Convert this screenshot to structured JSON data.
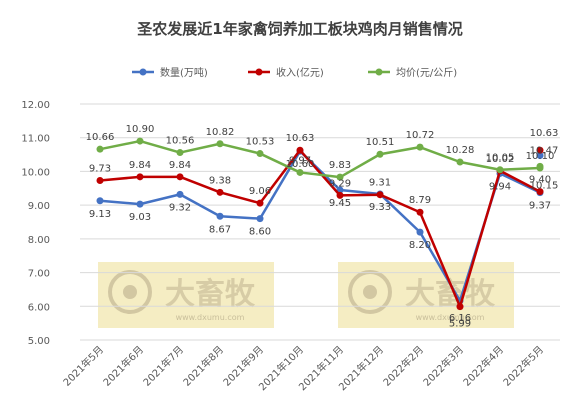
{
  "chart_data": {
    "type": "line",
    "title": "圣农发展近1年家禽饲养加工板块鸡肉月销售情况",
    "xlabel": "",
    "ylabel": "",
    "ylim": [
      5.0,
      12.0
    ],
    "yticks": [
      "5.00",
      "6.00",
      "7.00",
      "8.00",
      "9.00",
      "10.00",
      "11.00",
      "12.00"
    ],
    "grid": true,
    "legend_position": "top",
    "categories": [
      "2021年5月",
      "2021年6月",
      "2021年7月",
      "2021年8月",
      "2021年9月",
      "2021年10月",
      "2021年11月",
      "2021年12月",
      "2022年2月",
      "2022年3月",
      "2022年4月",
      "2022年5月"
    ],
    "series": [
      {
        "name": "数量(万吨)",
        "color": "#4472c4",
        "values": [
          9.13,
          9.03,
          9.32,
          8.67,
          8.6,
          10.6,
          9.45,
          9.33,
          8.2,
          6.16,
          9.94,
          9.37
        ],
        "labels": [
          "9.13",
          "9.03",
          "9.32",
          "8.67",
          "8.60",
          "10.60",
          "9.45",
          "9.33",
          "8.20",
          "6.16",
          "9.94",
          "9.37"
        ]
      },
      {
        "name": "收入(亿元)",
        "color": "#c00000",
        "values": [
          9.73,
          9.84,
          9.84,
          9.38,
          9.06,
          10.63,
          9.29,
          9.31,
          8.79,
          5.99,
          10.02,
          9.4
        ],
        "labels": [
          "9.73",
          "9.84",
          "9.84",
          "9.38",
          "9.06",
          "10.63",
          "9.29",
          "9.31",
          "8.79",
          "5.99",
          "10.02",
          "9.40"
        ]
      },
      {
        "name": "均价(元/公斤)",
        "color": "#70ad47",
        "values": [
          10.66,
          10.9,
          10.56,
          10.82,
          10.53,
          9.97,
          9.83,
          10.51,
          10.72,
          10.28,
          10.05,
          10.1
        ],
        "labels": [
          "10.66",
          "10.90",
          "10.56",
          "10.82",
          "10.53",
          "9.97",
          "9.83",
          "10.51",
          "10.72",
          "10.28",
          "10.05",
          "10.10"
        ]
      }
    ],
    "extra_points": {
      "x_category": "2022年5月",
      "values": [
        {
          "series": "数量(万吨)",
          "value": 10.47,
          "label": "10.47"
        },
        {
          "series": "收入(亿元)",
          "value": 10.63,
          "label": "10.63"
        },
        {
          "series": "均价(元/公斤)",
          "value": 10.15,
          "label": "10.15"
        }
      ]
    }
  },
  "watermark": {
    "brand": "大畜牧",
    "url": "www.dxumu.com"
  }
}
